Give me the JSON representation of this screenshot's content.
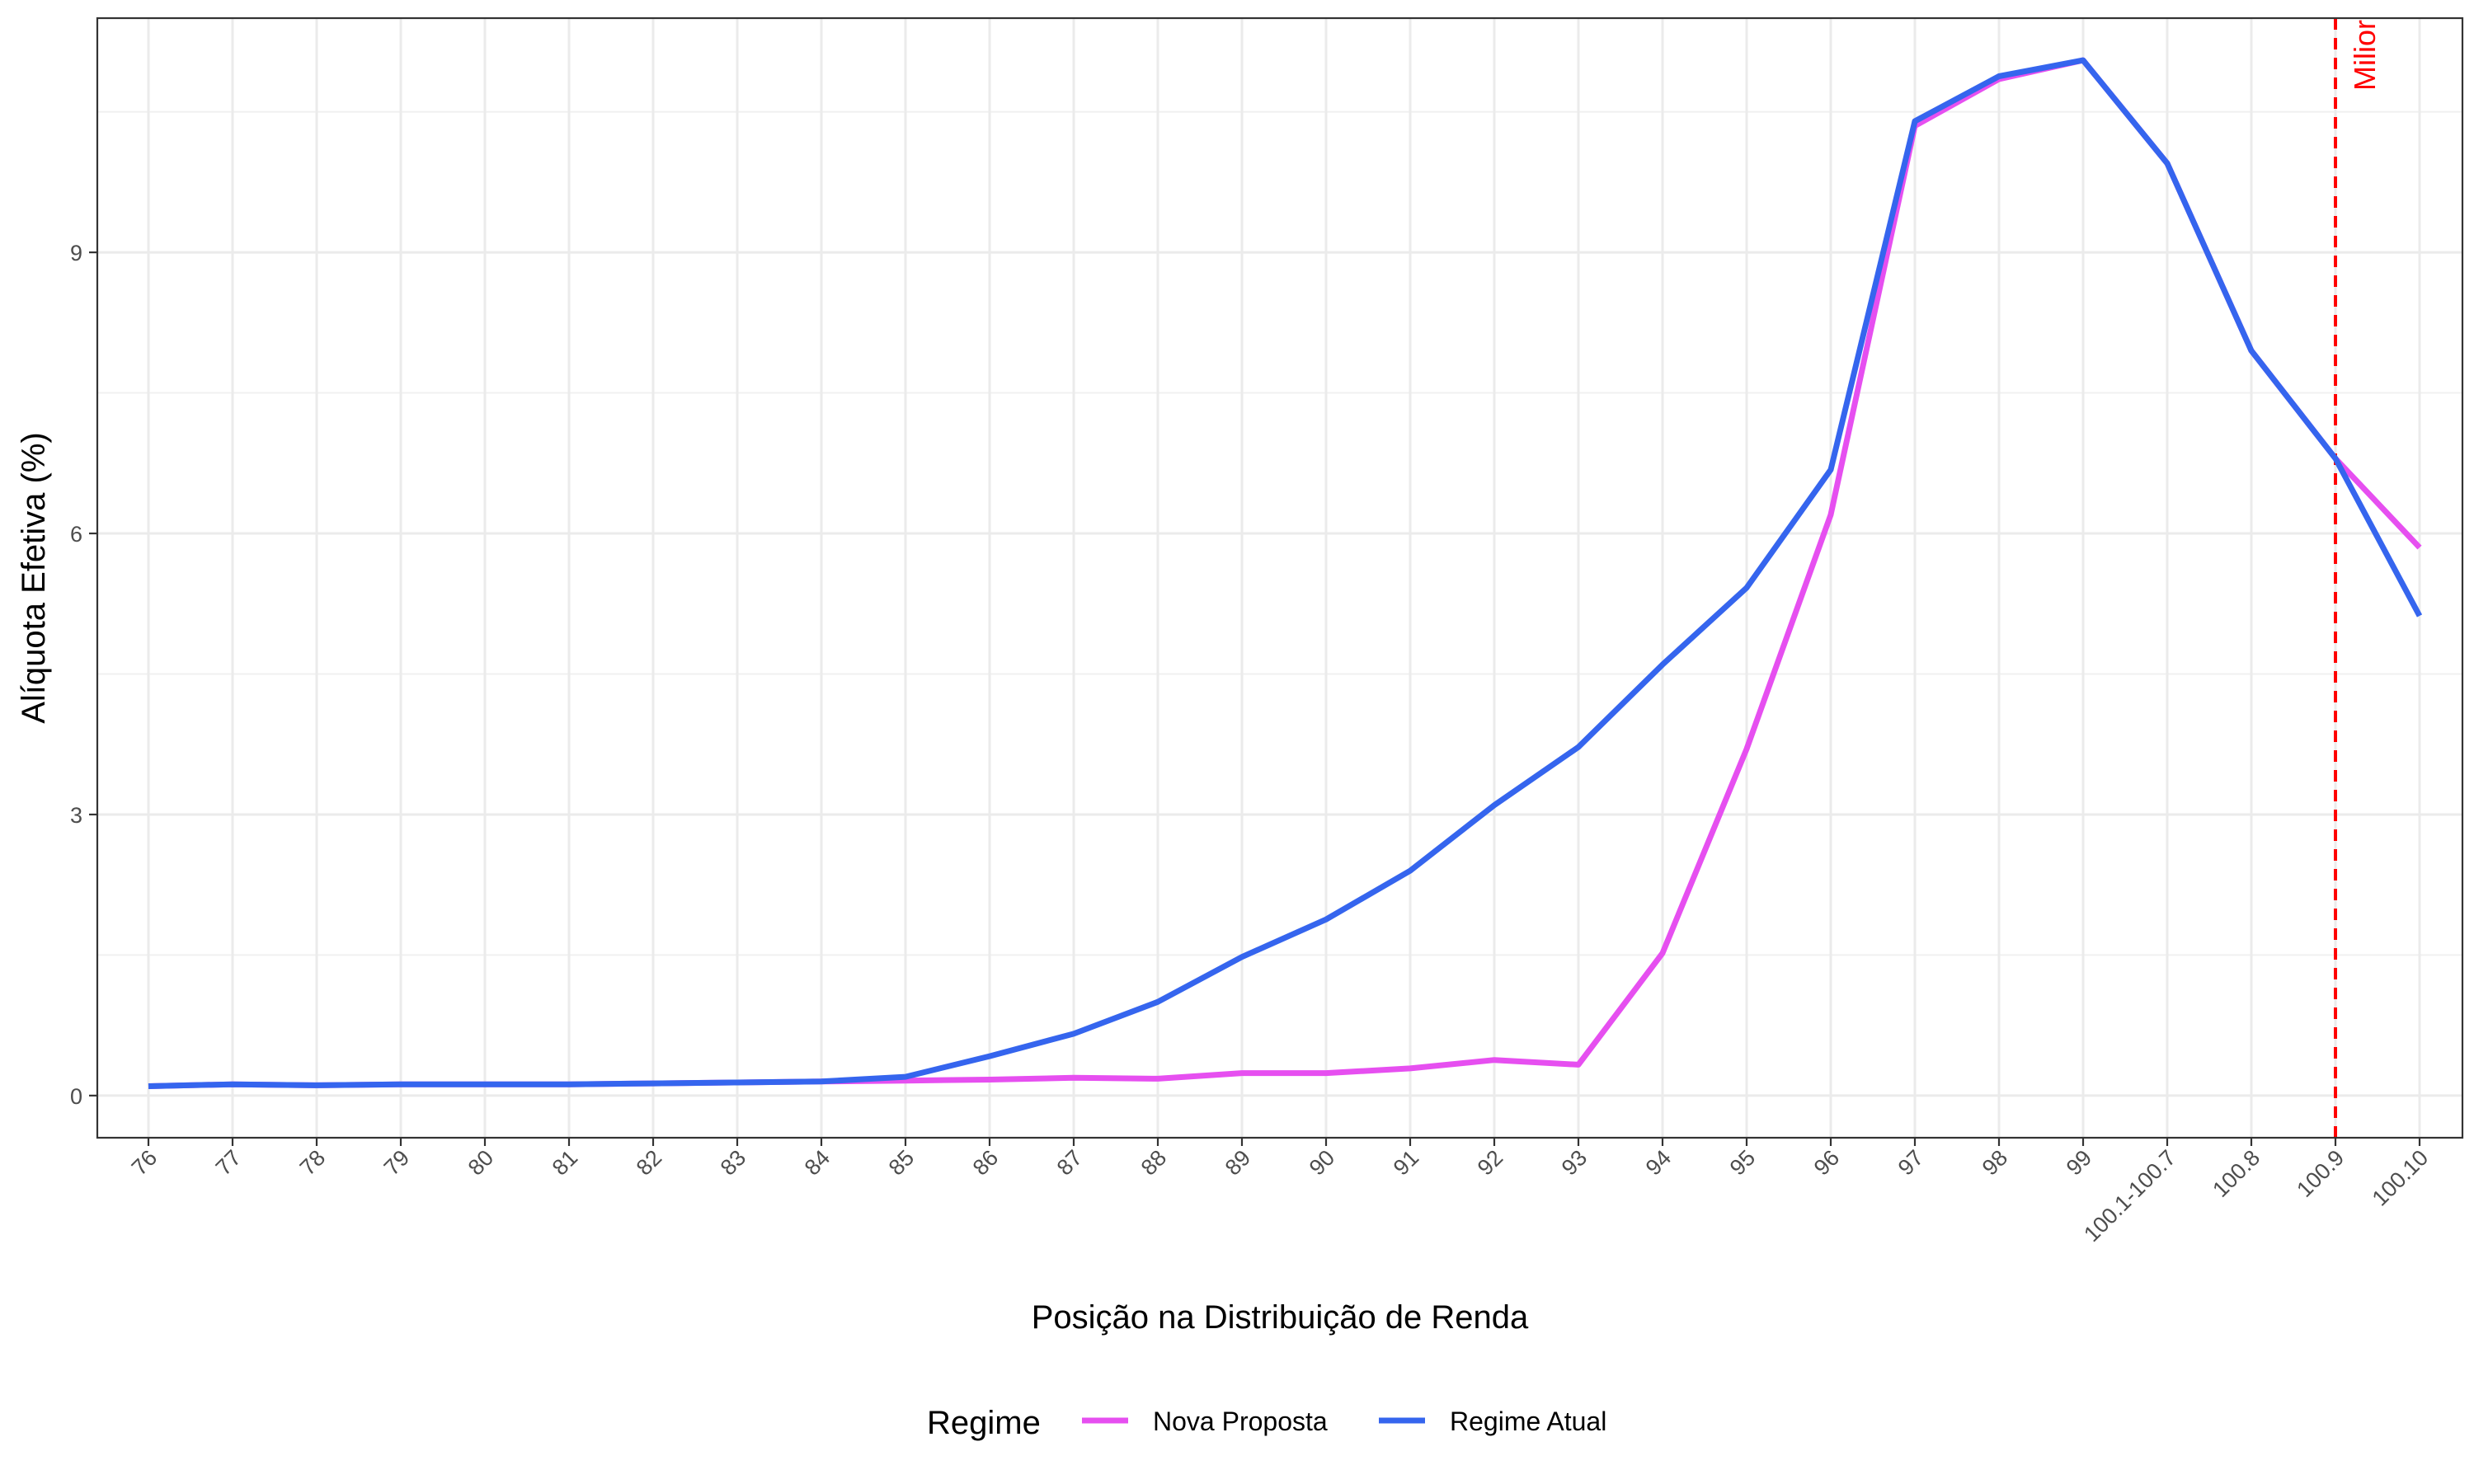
{
  "chart_data": {
    "type": "line",
    "title": "",
    "xlabel": "Posição na Distribuição de Renda",
    "ylabel": "Alíquota Efetiva (%)",
    "categories": [
      "76",
      "77",
      "78",
      "79",
      "80",
      "81",
      "82",
      "83",
      "84",
      "85",
      "86",
      "87",
      "88",
      "89",
      "90",
      "91",
      "92",
      "93",
      "94",
      "95",
      "96",
      "97",
      "98",
      "99",
      "100.1-100.7",
      "100.8",
      "100.9",
      "100.10"
    ],
    "ylim": [
      -0.45,
      11.5
    ],
    "yticks": [
      0,
      3,
      6,
      9
    ],
    "grid": true,
    "legend": {
      "title": "Regime",
      "position": "bottom"
    },
    "series": [
      {
        "name": "Nova Proposta",
        "color": "#E64FF0",
        "values": [
          0.1,
          0.12,
          0.11,
          0.12,
          0.12,
          0.12,
          0.13,
          0.14,
          0.15,
          0.16,
          0.17,
          0.19,
          0.18,
          0.24,
          0.24,
          0.29,
          0.38,
          0.33,
          1.52,
          3.7,
          6.2,
          10.35,
          10.85,
          11.05,
          9.95,
          7.95,
          6.8,
          5.85
        ]
      },
      {
        "name": "Regime Atual",
        "color": "#3565EE",
        "values": [
          0.1,
          0.12,
          0.11,
          0.12,
          0.12,
          0.12,
          0.13,
          0.14,
          0.15,
          0.2,
          0.42,
          0.66,
          1.0,
          1.48,
          1.88,
          2.4,
          3.1,
          3.72,
          4.6,
          5.42,
          6.68,
          10.4,
          10.88,
          11.05,
          9.95,
          7.95,
          6.8,
          5.12
        ]
      }
    ],
    "annotation": {
      "category": "100.9",
      "label": "Milior",
      "color": "#FF0000"
    }
  }
}
